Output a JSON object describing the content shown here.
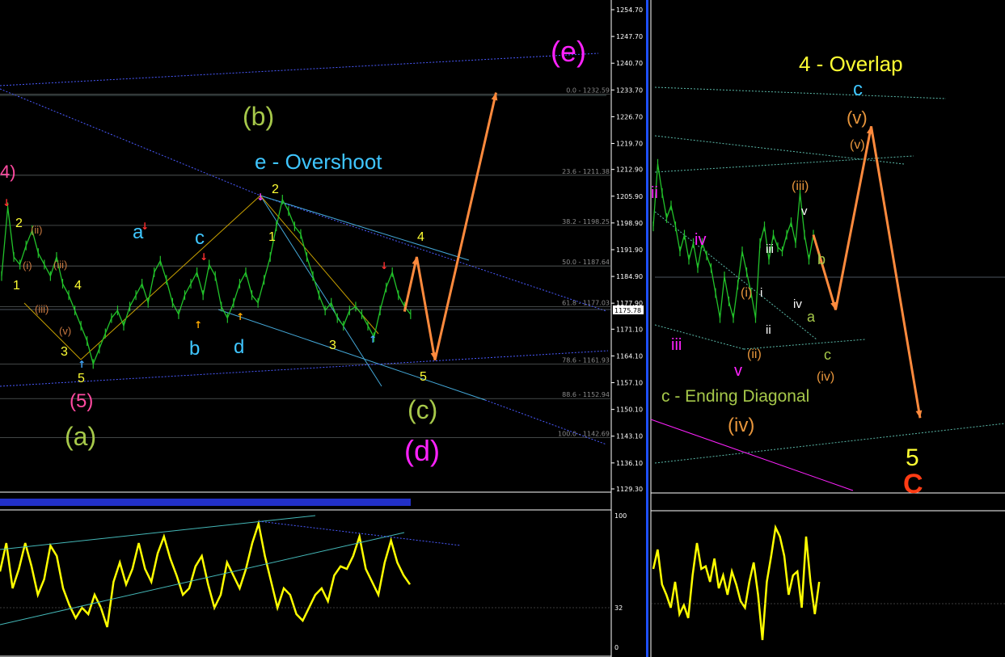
{
  "chart_data": [
    {
      "type": "line",
      "panel": "left-price",
      "title": "",
      "xlabel": "",
      "ylabel": "",
      "ylim": [
        1129.3,
        1254.7
      ],
      "y_ticks": [
        "1254.70",
        "1247.70",
        "1240.70",
        "1233.70",
        "1226.70",
        "1219.70",
        "1212.90",
        "1205.90",
        "1198.90",
        "1191.90",
        "1184.90",
        "1177.90",
        "1171.10",
        "1164.10",
        "1157.10",
        "1150.10",
        "1143.10",
        "1136.10",
        "1129.30"
      ],
      "current_price": "1175.78",
      "grid": false,
      "fib_levels": [
        {
          "text": "0.0 - 1232.59",
          "value": 1232.59
        },
        {
          "text": "23.6 - 1211.38",
          "value": 1211.38
        },
        {
          "text": "38.2 - 1198.25",
          "value": 1198.25
        },
        {
          "text": "50.0 - 1187.64",
          "value": 1187.64
        },
        {
          "text": "61.8 - 1177.03",
          "value": 1177.03
        },
        {
          "text": "78.6 - 1161.93",
          "value": 1161.93
        },
        {
          "text": "88.6 - 1152.94",
          "value": 1152.94
        },
        {
          "text": "100.0 - 1142.69",
          "value": 1142.69
        }
      ],
      "series": [
        {
          "values": [
            1185,
            1203,
            1190,
            1188,
            1193,
            1197,
            1191,
            1188,
            1185,
            1190,
            1183,
            1180,
            1176,
            1172,
            1168,
            1162,
            1166,
            1170,
            1174,
            1176,
            1172,
            1177,
            1180,
            1183,
            1178,
            1186,
            1189,
            1184,
            1178,
            1175,
            1180,
            1183,
            1186,
            1180,
            1188,
            1185,
            1177,
            1174,
            1178,
            1183,
            1186,
            1180,
            1178,
            1184,
            1190,
            1198,
            1205,
            1202,
            1198,
            1196,
            1190,
            1185,
            1180,
            1176,
            1178,
            1174,
            1172,
            1176,
            1177,
            1175,
            1172,
            1169,
            1176,
            1182,
            1186,
            1180,
            1177,
            1175
          ]
        }
      ],
      "projection": [
        {
          "x": 66,
          "y": 1175.7
        },
        {
          "x": 68,
          "y": 1190
        },
        {
          "x": 71,
          "y": 1163
        },
        {
          "x": 81,
          "y": 1233
        }
      ]
    },
    {
      "type": "line",
      "panel": "right-price",
      "title": "",
      "xlabel": "",
      "ylabel": "",
      "ylim": [
        1125,
        1240
      ],
      "grid": false,
      "series": [
        {
          "values": [
            1188,
            1203,
            1196,
            1190,
            1193,
            1188,
            1182,
            1186,
            1180,
            1184,
            1178,
            1184,
            1181,
            1178,
            1172,
            1166,
            1176,
            1170,
            1166,
            1174,
            1182,
            1177,
            1172,
            1166,
            1184,
            1188,
            1180,
            1186,
            1183,
            1182,
            1186,
            1189,
            1184,
            1196,
            1186,
            1180,
            1186
          ]
        }
      ],
      "projection": [
        {
          "x": 36,
          "y": 1186
        },
        {
          "x": 41,
          "y": 1168
        },
        {
          "x": 49,
          "y": 1212
        },
        {
          "x": 60,
          "y": 1142
        }
      ]
    },
    {
      "type": "line",
      "panel": "left-oscillator",
      "ylim": [
        0,
        100
      ],
      "y_ticks": [
        "100",
        "32",
        "0"
      ],
      "series": [
        {
          "values": [
            58,
            80,
            45,
            60,
            80,
            62,
            40,
            52,
            78,
            70,
            45,
            32,
            22,
            30,
            25,
            40,
            30,
            15,
            50,
            65,
            48,
            60,
            80,
            60,
            50,
            72,
            85,
            68,
            55,
            40,
            45,
            62,
            70,
            48,
            30,
            40,
            65,
            55,
            45,
            60,
            80,
            95,
            70,
            50,
            30,
            45,
            40,
            25,
            20,
            30,
            40,
            45,
            35,
            55,
            62,
            60,
            70,
            85,
            60,
            50,
            40,
            65,
            82,
            65,
            55,
            48
          ]
        }
      ]
    },
    {
      "type": "line",
      "panel": "right-oscillator",
      "ylim": [
        0,
        100
      ],
      "series": [
        {
          "values": [
            60,
            75,
            48,
            40,
            30,
            50,
            25,
            32,
            22,
            55,
            80,
            60,
            62,
            50,
            68,
            45,
            55,
            40,
            58,
            48,
            35,
            30,
            50,
            65,
            40,
            5,
            50,
            70,
            92,
            85,
            70,
            40,
            55,
            58,
            30,
            85,
            50,
            25,
            50
          ]
        }
      ]
    }
  ],
  "labels": {
    "e_big": "(e)",
    "b_big": "(b)",
    "e_overshoot": "e - Overshoot",
    "four_paren": "4)",
    "left_2a": "2",
    "left_1": "1",
    "left_4": "4",
    "left_3": "3",
    "left_5": "5",
    "left_i": "(i)",
    "left_ii": "(ii)",
    "left_iii_a": "(iii)",
    "left_iii_b": "(iii)",
    "left_v": "(v)",
    "five_paren": "(5)",
    "a_big": "(a)",
    "a_small": "a",
    "b_small": "b",
    "c_small": "c",
    "d_small": "d",
    "mid_2": "2",
    "mid_1": "1",
    "mid_3": "3",
    "mid_4": "4",
    "mid_5": "5",
    "c_big": "(c)",
    "d_big": "(d)",
    "overlap": "4 - Overlap",
    "r_c_top": "c",
    "r_v_1": "(v)",
    "r_v_2": "(v)",
    "r_ii_mag": "ii",
    "r_iv_mag": "iv",
    "r_iii_mag": "iii",
    "r_v_mag": "v",
    "r_iii_paren": "(iii)",
    "r_v_white": "v",
    "r_iii_white": "iii",
    "r_i_paren": "(i)",
    "r_i_white": "i",
    "r_ii_white": "ii",
    "r_iv_white": "iv",
    "r_ii_paren": "(ii)",
    "r_b_green": "b",
    "r_a_green": "a",
    "r_c_green": "c",
    "r_iv_paren_o": "(iv)",
    "ending_diagonal": "c - Ending Diagonal",
    "r_iv_big": "(iv)",
    "r_5": "5",
    "r_C": "C"
  },
  "colors": {
    "price": "#22c22a",
    "projection": "#ff8a3d",
    "oscillator": "#ffff00",
    "magenta": "#ff22ff",
    "cyan": "#3fc6ff",
    "olive": "#a6c84a",
    "yellow": "#ffff33",
    "orange": "#e8963c",
    "red_orange": "#ff3c14",
    "pink": "#ff4aa0"
  }
}
